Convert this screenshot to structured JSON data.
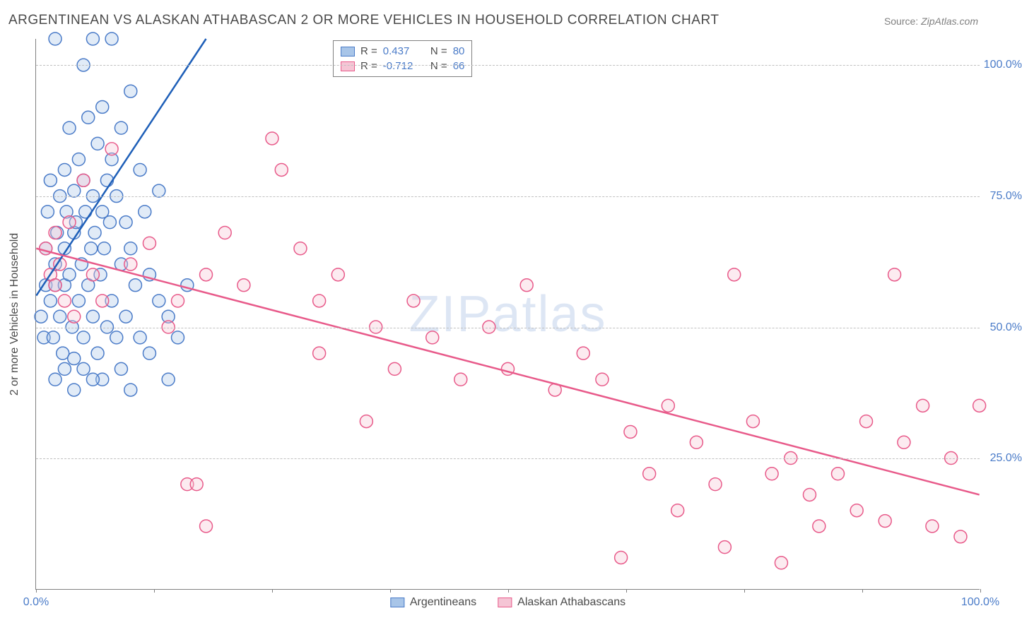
{
  "title": "ARGENTINEAN VS ALASKAN ATHABASCAN 2 OR MORE VEHICLES IN HOUSEHOLD CORRELATION CHART",
  "source_label": "Source:",
  "source_value": "ZipAtlas.com",
  "watermark": "ZIPatlas",
  "y_axis_title": "2 or more Vehicles in Household",
  "chart": {
    "type": "scatter",
    "xlim": [
      0,
      100
    ],
    "ylim": [
      0,
      105
    ],
    "x_ticks": [
      0,
      12.5,
      25,
      37.5,
      50,
      62.5,
      75,
      87.5,
      100
    ],
    "x_tick_labels": {
      "0": "0.0%",
      "100": "100.0%"
    },
    "y_gridlines": [
      25,
      50,
      75,
      100
    ],
    "y_tick_labels": {
      "25": "25.0%",
      "50": "50.0%",
      "75": "75.0%",
      "100": "100.0%"
    },
    "background_color": "#ffffff",
    "grid_color": "#c0c0c0",
    "axis_color": "#808080",
    "tick_label_color": "#4a7bc8",
    "marker_radius": 9,
    "marker_stroke_width": 1.5,
    "marker_fill_opacity": 0.35,
    "trend_line_width": 2.5,
    "series": [
      {
        "name": "Argentineans",
        "color_fill": "#a8c5e8",
        "color_stroke": "#4a7bc8",
        "trend_color": "#1e5fb8",
        "R": "0.437",
        "N": "80",
        "trend_line": {
          "x1": 0,
          "y1": 56,
          "x2": 18,
          "y2": 105
        },
        "points": [
          [
            0.5,
            52
          ],
          [
            0.8,
            48
          ],
          [
            1,
            58
          ],
          [
            1,
            65
          ],
          [
            1.2,
            72
          ],
          [
            1.5,
            78
          ],
          [
            1.5,
            55
          ],
          [
            1.8,
            48
          ],
          [
            2,
            105
          ],
          [
            2,
            62
          ],
          [
            2,
            58
          ],
          [
            2.2,
            68
          ],
          [
            2.5,
            75
          ],
          [
            2.5,
            52
          ],
          [
            2.8,
            45
          ],
          [
            3,
            80
          ],
          [
            3,
            65
          ],
          [
            3,
            58
          ],
          [
            3.2,
            72
          ],
          [
            3.5,
            88
          ],
          [
            3.5,
            60
          ],
          [
            3.8,
            50
          ],
          [
            4,
            76
          ],
          [
            4,
            68
          ],
          [
            4,
            44
          ],
          [
            4.2,
            70
          ],
          [
            4.5,
            82
          ],
          [
            4.5,
            55
          ],
          [
            4.8,
            62
          ],
          [
            5,
            100
          ],
          [
            5,
            78
          ],
          [
            5,
            48
          ],
          [
            5.2,
            72
          ],
          [
            5.5,
            90
          ],
          [
            5.5,
            58
          ],
          [
            5.8,
            65
          ],
          [
            6,
            105
          ],
          [
            6,
            75
          ],
          [
            6,
            52
          ],
          [
            6.2,
            68
          ],
          [
            6.5,
            85
          ],
          [
            6.5,
            45
          ],
          [
            6.8,
            60
          ],
          [
            7,
            92
          ],
          [
            7,
            72
          ],
          [
            7,
            40
          ],
          [
            7.2,
            65
          ],
          [
            7.5,
            78
          ],
          [
            7.5,
            50
          ],
          [
            7.8,
            70
          ],
          [
            8,
            105
          ],
          [
            8,
            82
          ],
          [
            8,
            55
          ],
          [
            8.5,
            75
          ],
          [
            8.5,
            48
          ],
          [
            9,
            88
          ],
          [
            9,
            62
          ],
          [
            9,
            42
          ],
          [
            9.5,
            70
          ],
          [
            9.5,
            52
          ],
          [
            10,
            95
          ],
          [
            10,
            65
          ],
          [
            10,
            38
          ],
          [
            10.5,
            58
          ],
          [
            11,
            80
          ],
          [
            11,
            48
          ],
          [
            11.5,
            72
          ],
          [
            12,
            60
          ],
          [
            12,
            45
          ],
          [
            13,
            76
          ],
          [
            13,
            55
          ],
          [
            14,
            52
          ],
          [
            14,
            40
          ],
          [
            15,
            48
          ],
          [
            16,
            58
          ],
          [
            2,
            40
          ],
          [
            3,
            42
          ],
          [
            4,
            38
          ],
          [
            5,
            42
          ],
          [
            6,
            40
          ]
        ]
      },
      {
        "name": "Alaskan Athabascans",
        "color_fill": "#f5c5d5",
        "color_stroke": "#e85a8a",
        "trend_color": "#e85a8a",
        "R": "-0.712",
        "N": "66",
        "trend_line": {
          "x1": 0,
          "y1": 65,
          "x2": 100,
          "y2": 18
        },
        "points": [
          [
            1,
            65
          ],
          [
            1.5,
            60
          ],
          [
            2,
            68
          ],
          [
            2,
            58
          ],
          [
            2.5,
            62
          ],
          [
            3,
            55
          ],
          [
            3.5,
            70
          ],
          [
            4,
            52
          ],
          [
            5,
            78
          ],
          [
            6,
            60
          ],
          [
            7,
            55
          ],
          [
            8,
            84
          ],
          [
            10,
            62
          ],
          [
            12,
            66
          ],
          [
            14,
            50
          ],
          [
            15,
            55
          ],
          [
            16,
            20
          ],
          [
            17,
            20
          ],
          [
            18,
            12
          ],
          [
            18,
            60
          ],
          [
            20,
            68
          ],
          [
            22,
            58
          ],
          [
            25,
            86
          ],
          [
            26,
            80
          ],
          [
            28,
            65
          ],
          [
            30,
            55
          ],
          [
            30,
            45
          ],
          [
            32,
            60
          ],
          [
            35,
            32
          ],
          [
            36,
            50
          ],
          [
            38,
            42
          ],
          [
            40,
            55
          ],
          [
            42,
            48
          ],
          [
            45,
            40
          ],
          [
            48,
            50
          ],
          [
            50,
            42
          ],
          [
            52,
            58
          ],
          [
            55,
            38
          ],
          [
            58,
            45
          ],
          [
            60,
            40
          ],
          [
            62,
            6
          ],
          [
            63,
            30
          ],
          [
            65,
            22
          ],
          [
            67,
            35
          ],
          [
            68,
            15
          ],
          [
            70,
            28
          ],
          [
            72,
            20
          ],
          [
            73,
            8
          ],
          [
            74,
            60
          ],
          [
            76,
            32
          ],
          [
            78,
            22
          ],
          [
            79,
            5
          ],
          [
            80,
            25
          ],
          [
            82,
            18
          ],
          [
            83,
            12
          ],
          [
            85,
            22
          ],
          [
            87,
            15
          ],
          [
            88,
            32
          ],
          [
            90,
            13
          ],
          [
            91,
            60
          ],
          [
            92,
            28
          ],
          [
            94,
            35
          ],
          [
            95,
            12
          ],
          [
            97,
            25
          ],
          [
            98,
            10
          ],
          [
            100,
            35
          ]
        ]
      }
    ]
  },
  "legend_bottom": [
    {
      "label": "Argentineans",
      "swatch": "blue"
    },
    {
      "label": "Alaskan Athabascans",
      "swatch": "pink"
    }
  ]
}
